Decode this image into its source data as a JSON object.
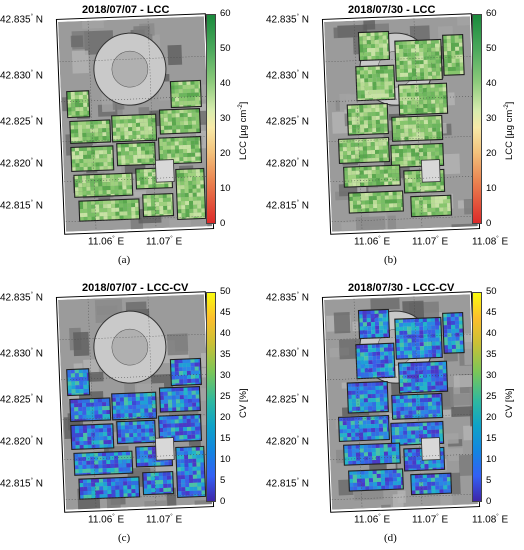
{
  "panels": [
    {
      "title": "2018/07/07 - LCC",
      "lat_ticks": [
        "42.835",
        "42.830",
        "42.825",
        "42.820",
        "42.815"
      ],
      "lon_ticks": [
        "11.06",
        "11.07"
      ],
      "lat_suffix": "N",
      "lon_suffix": "E",
      "colorbar": {
        "label": "LCC [µg cm",
        "label_exp": "-2",
        "label_close": "]",
        "ticks": [
          "60",
          "50",
          "40",
          "30",
          "20",
          "10",
          "0"
        ],
        "colormap": "red-yellow-green"
      },
      "sublabel": "(a)"
    },
    {
      "title": "2018/07/30 - LCC",
      "lat_ticks": [
        "42.835",
        "42.830",
        "42.825",
        "42.820",
        "42.815"
      ],
      "lon_ticks": [
        "11.06",
        "11.07",
        "11.08"
      ],
      "lat_suffix": "N",
      "lon_suffix": "E",
      "colorbar": {
        "label": "LCC [µg cm",
        "label_exp": "-2",
        "label_close": "]",
        "ticks": [
          "60",
          "50",
          "40",
          "30",
          "20",
          "10",
          "0"
        ],
        "colormap": "red-yellow-green"
      },
      "sublabel": "(b)"
    },
    {
      "title": "2018/07/07 - LCC-CV",
      "lat_ticks": [
        "42.835",
        "42.830",
        "42.825",
        "42.820",
        "42.815"
      ],
      "lon_ticks": [
        "11.06",
        "11.07"
      ],
      "lat_suffix": "N",
      "lon_suffix": "E",
      "colorbar": {
        "label": "CV [%]",
        "label_exp": "",
        "label_close": "",
        "ticks": [
          "50",
          "45",
          "40",
          "35",
          "30",
          "25",
          "20",
          "15",
          "10",
          "5",
          "0"
        ],
        "colormap": "parula"
      },
      "sublabel": "(c)"
    },
    {
      "title": "2018/07/30 - LCC-CV",
      "lat_ticks": [
        "42.835",
        "42.830",
        "42.825",
        "42.820",
        "42.815"
      ],
      "lon_ticks": [
        "11.06",
        "11.07",
        "11.08"
      ],
      "lat_suffix": "N",
      "lon_suffix": "E",
      "colorbar": {
        "label": "CV [%]",
        "label_exp": "",
        "label_close": "",
        "ticks": [
          "50",
          "45",
          "40",
          "35",
          "30",
          "25",
          "20",
          "15",
          "10",
          "5",
          "0"
        ],
        "colormap": "parula"
      },
      "sublabel": "(d)"
    }
  ]
}
